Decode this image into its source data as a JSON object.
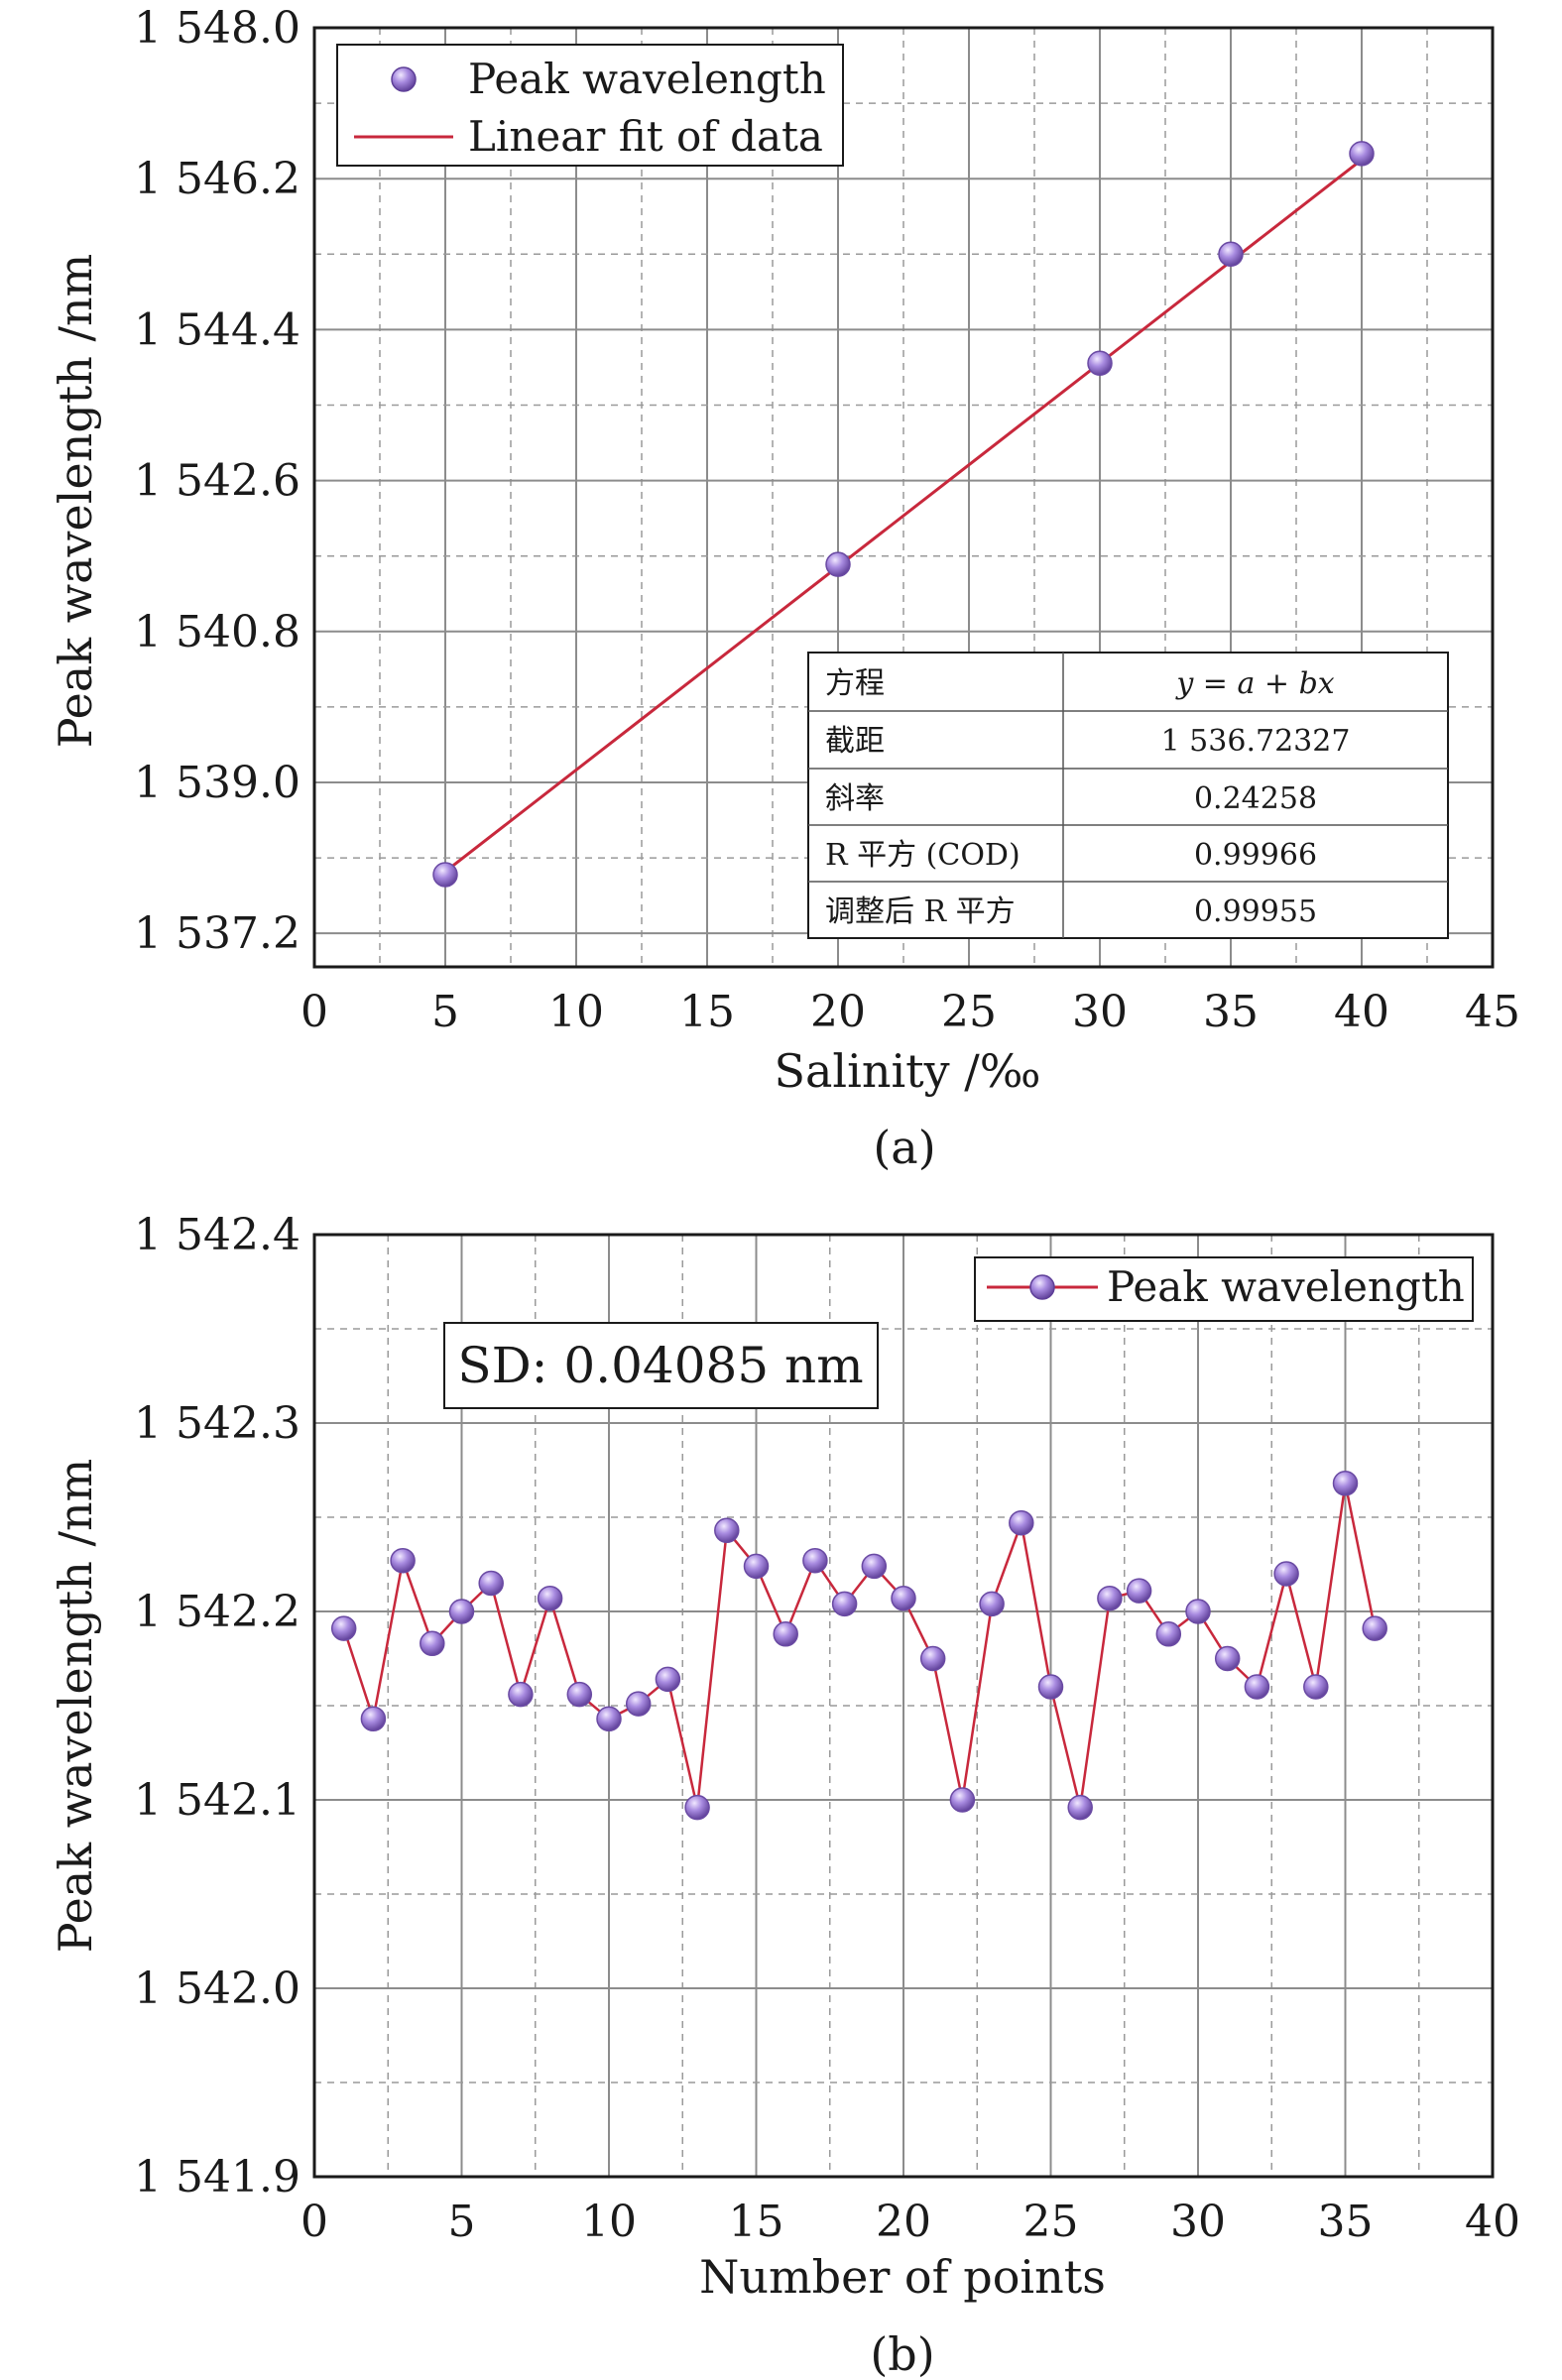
{
  "colors": {
    "marker_fill": "#9f7fd1",
    "marker_edge": "#6a4aa3",
    "line": "#c8283c",
    "grid_major": "#8c8c8c",
    "grid_minor": "#9a9a9a",
    "axis": "#1a1a1a"
  },
  "chart_data": [
    {
      "type": "scatter",
      "panel_label": "(a)",
      "xlabel": "Salinity /‰",
      "ylabel": "Peak wavelength /nm",
      "xlim": [
        0,
        45
      ],
      "ylim": [
        1536.8,
        1548.0
      ],
      "x_ticks": [
        0,
        5,
        10,
        15,
        20,
        25,
        30,
        35,
        40,
        45
      ],
      "y_ticks": [
        1537.2,
        1539.0,
        1540.8,
        1542.6,
        1544.4,
        1546.2,
        1548.0
      ],
      "y_tick_labels": [
        "1 537.2",
        "1 539.0",
        "1 540.8",
        "1 542.6",
        "1 544.4",
        "1 546.2",
        "1 548.0"
      ],
      "grid": true,
      "legend_position": "top-left",
      "series": [
        {
          "name": "Peak wavelength",
          "kind": "markers",
          "x": [
            5,
            20,
            30,
            35,
            40
          ],
          "y": [
            1537.9,
            1541.6,
            1544.0,
            1545.3,
            1546.5
          ]
        },
        {
          "name": "Linear fit of data",
          "kind": "line",
          "x": [
            5,
            40
          ],
          "y": [
            1537.936,
            1546.426
          ]
        }
      ],
      "fit_table": {
        "rows": [
          {
            "label": "方程",
            "value": "y = a + bx"
          },
          {
            "label": "截距",
            "value": "1 536.72327"
          },
          {
            "label": "斜率",
            "value": "0.24258"
          },
          {
            "label": "R 平方 (COD)",
            "value": "0.99966"
          },
          {
            "label": "调整后 R 平方",
            "value": "0.99955"
          }
        ]
      }
    },
    {
      "type": "line",
      "panel_label": "(b)",
      "xlabel": "Number of points",
      "ylabel": "Peak wavelength /nm",
      "xlim": [
        0,
        40
      ],
      "ylim": [
        1541.9,
        1542.4
      ],
      "x_ticks": [
        0,
        5,
        10,
        15,
        20,
        25,
        30,
        35,
        40
      ],
      "y_ticks": [
        1541.9,
        1542.0,
        1542.1,
        1542.2,
        1542.3,
        1542.4
      ],
      "y_tick_labels": [
        "1 541.9",
        "1 542.0",
        "1 542.1",
        "1 542.2",
        "1 542.3",
        "1 542.4"
      ],
      "grid": true,
      "legend_position": "top-right",
      "annotation": "SD: 0.04085 nm",
      "series": [
        {
          "name": "Peak wavelength",
          "x": [
            1,
            2,
            3,
            4,
            5,
            6,
            7,
            8,
            9,
            10,
            11,
            12,
            13,
            14,
            15,
            16,
            17,
            18,
            19,
            20,
            21,
            22,
            23,
            24,
            25,
            26,
            27,
            28,
            29,
            30,
            31,
            32,
            33,
            34,
            35,
            36
          ],
          "y": [
            1542.191,
            1542.143,
            1542.227,
            1542.183,
            1542.2,
            1542.215,
            1542.156,
            1542.207,
            1542.156,
            1542.143,
            1542.151,
            1542.164,
            1542.096,
            1542.243,
            1542.224,
            1542.188,
            1542.227,
            1542.204,
            1542.224,
            1542.207,
            1542.175,
            1542.1,
            1542.204,
            1542.247,
            1542.16,
            1542.096,
            1542.207,
            1542.211,
            1542.188,
            1542.2,
            1542.175,
            1542.16,
            1542.22,
            1542.16,
            1542.268,
            1542.191
          ]
        }
      ]
    }
  ]
}
